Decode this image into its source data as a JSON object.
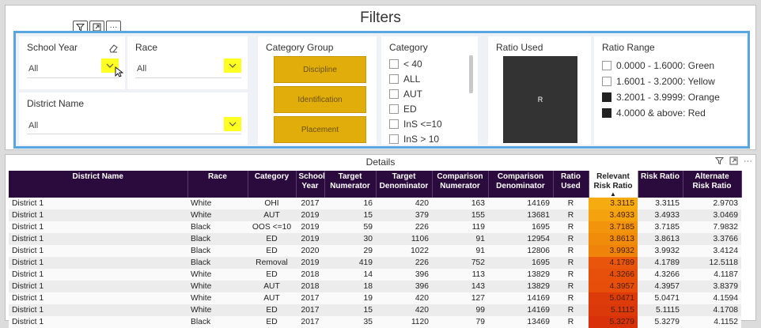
{
  "filters": {
    "title": "Filters",
    "school_year": {
      "label": "School Year",
      "value": "All"
    },
    "race": {
      "label": "Race",
      "value": "All"
    },
    "district_name": {
      "label": "District Name",
      "value": "All"
    },
    "category_group": {
      "label": "Category Group",
      "buttons": [
        "Discipline",
        "Identification",
        "Placement"
      ]
    },
    "category": {
      "label": "Category",
      "options": [
        "< 40",
        "ALL",
        "AUT",
        "ED",
        "InS <=10",
        "InS > 10"
      ]
    },
    "ratio_used": {
      "label": "Ratio Used",
      "value": "R"
    },
    "ratio_range": {
      "label": "Ratio Range",
      "options": [
        {
          "text": "0.0000 - 1.6000: Green",
          "checked": false
        },
        {
          "text": "1.6001 - 3.2000: Yellow",
          "checked": false
        },
        {
          "text": "3.2001 - 3.9999: Orange",
          "checked": true
        },
        {
          "text": "4.0000 & above: Red",
          "checked": true
        }
      ]
    }
  },
  "details": {
    "title": "Details",
    "columns": [
      "District Name",
      "Race",
      "Category",
      "School Year",
      "Target Numerator",
      "Target Denominator",
      "Comparison Numerator",
      "Comparison Denominator",
      "Ratio Used",
      "Relevant Risk Ratio",
      "Risk Ratio",
      "Alternate Risk Ratio"
    ],
    "sorted_column": "Relevant Risk Ratio",
    "sort_direction": "ascending",
    "rows": [
      [
        "District 1",
        "White",
        "OHI",
        "2017",
        "16",
        "420",
        "163",
        "14169",
        "R",
        "3.3115",
        "3.3115",
        "2.9703"
      ],
      [
        "District 1",
        "White",
        "AUT",
        "2019",
        "15",
        "379",
        "155",
        "13681",
        "R",
        "3.4933",
        "3.4933",
        "3.0469"
      ],
      [
        "District 1",
        "Black",
        "OOS <=10",
        "2019",
        "59",
        "226",
        "119",
        "1695",
        "R",
        "3.7185",
        "3.7185",
        "7.9832"
      ],
      [
        "District 1",
        "Black",
        "ED",
        "2019",
        "30",
        "1106",
        "91",
        "12954",
        "R",
        "3.8613",
        "3.8613",
        "3.3766"
      ],
      [
        "District 1",
        "Black",
        "ED",
        "2020",
        "29",
        "1022",
        "91",
        "12806",
        "R",
        "3.9932",
        "3.9932",
        "3.4124"
      ],
      [
        "District 1",
        "Black",
        "Removal",
        "2019",
        "419",
        "226",
        "752",
        "1695",
        "R",
        "4.1789",
        "4.1789",
        "12.5118"
      ],
      [
        "District 1",
        "White",
        "ED",
        "2018",
        "14",
        "396",
        "113",
        "13829",
        "R",
        "4.3266",
        "4.3266",
        "4.1187"
      ],
      [
        "District 1",
        "White",
        "AUT",
        "2018",
        "18",
        "396",
        "143",
        "13829",
        "R",
        "4.3957",
        "4.3957",
        "3.8379"
      ],
      [
        "District 1",
        "White",
        "AUT",
        "2017",
        "19",
        "420",
        "127",
        "14169",
        "R",
        "5.0471",
        "5.0471",
        "4.1594"
      ],
      [
        "District 1",
        "White",
        "ED",
        "2017",
        "15",
        "420",
        "99",
        "14169",
        "R",
        "5.1115",
        "5.1115",
        "4.1708"
      ],
      [
        "District 1",
        "Black",
        "ED",
        "2017",
        "35",
        "1120",
        "79",
        "13469",
        "R",
        "5.3279",
        "5.3279",
        "4.1152"
      ]
    ]
  },
  "colors": {
    "header_bg": "#2b0a3d",
    "slicer_border": "#58a6e0",
    "category_button": "#e0ad0b",
    "dropdown_highlight": "#ffff22",
    "heat_orange": "#f5a00a",
    "heat_red": "#e8420a"
  },
  "icons": [
    "filter-icon",
    "focus-mode-icon",
    "more-options-icon",
    "eraser-icon",
    "chevron-down-icon",
    "mouse-cursor-icon"
  ]
}
